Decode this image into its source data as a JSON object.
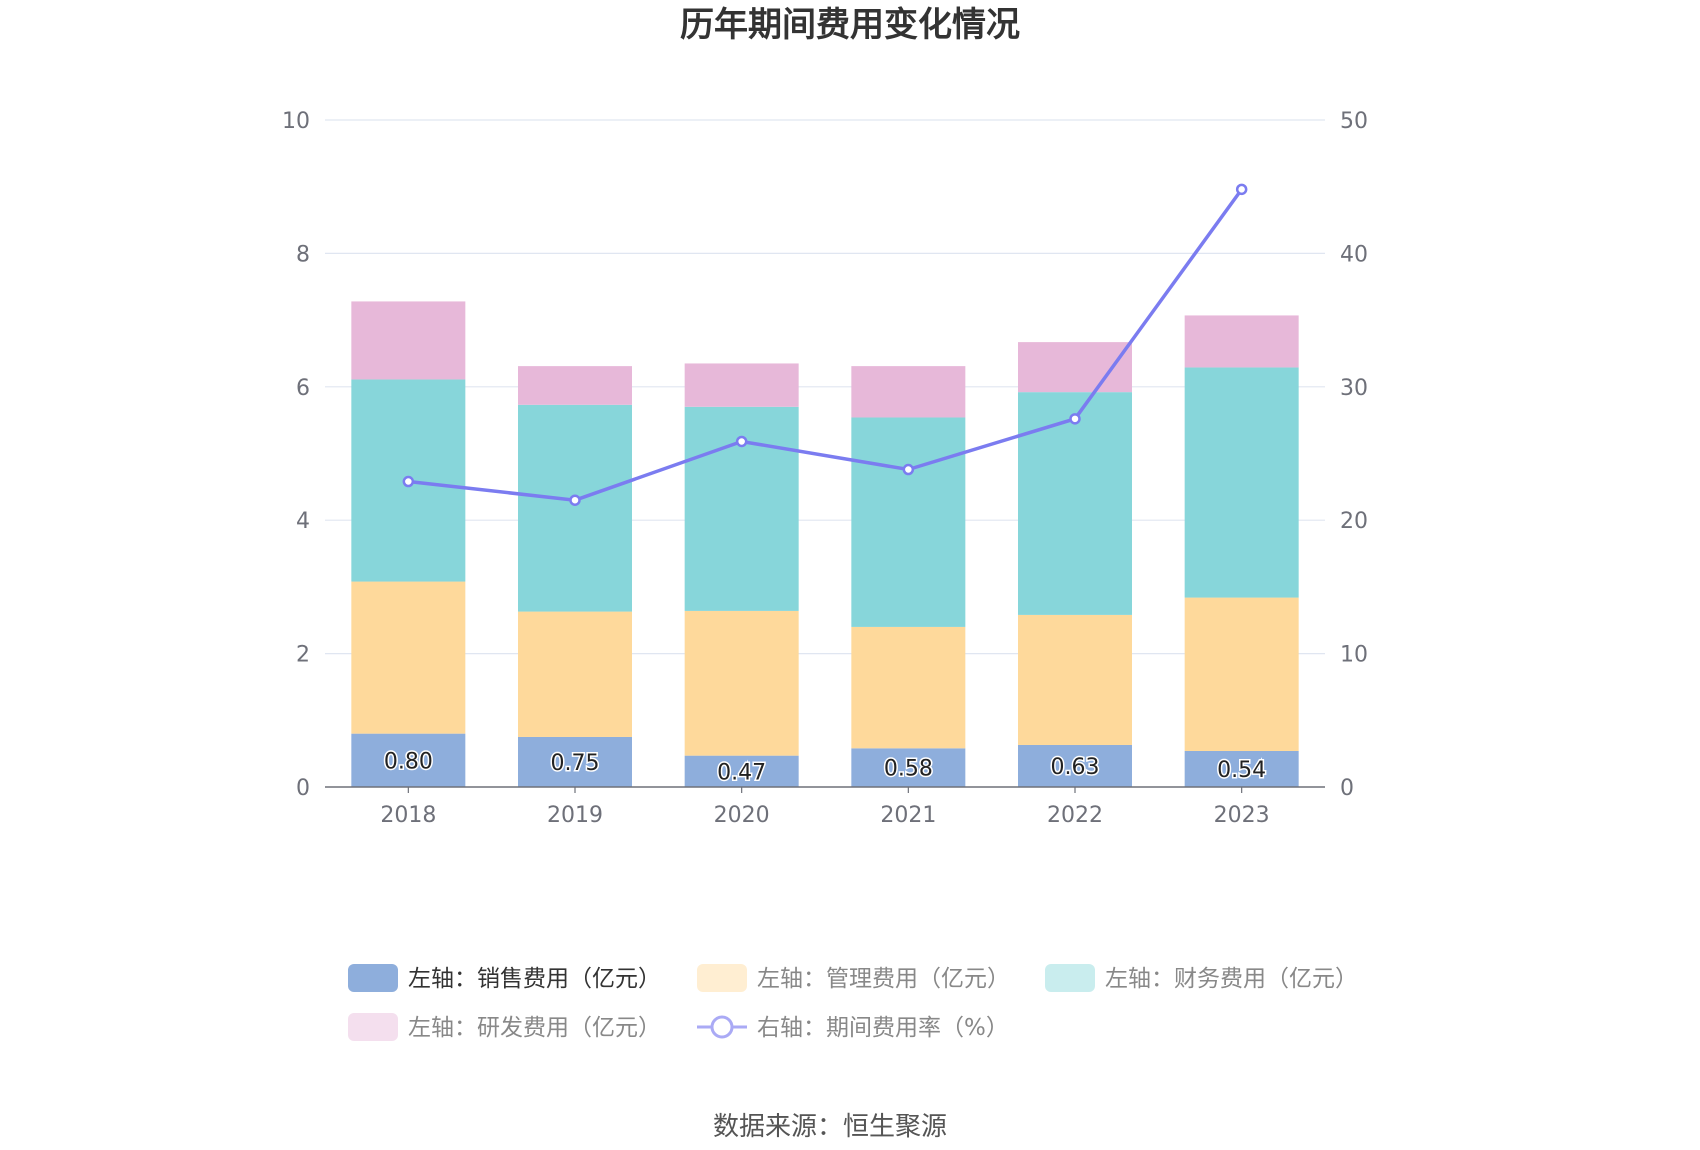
{
  "chart_data": {
    "type": "bar",
    "stacked": true,
    "title": "历年期间费用变化情况",
    "categories": [
      "2018",
      "2019",
      "2020",
      "2021",
      "2022",
      "2023"
    ],
    "y_left": {
      "min": 0,
      "max": 10,
      "ticks": [
        "0",
        "2",
        "4",
        "6",
        "8",
        "10"
      ]
    },
    "y_right": {
      "min": 0,
      "max": 50,
      "ticks": [
        "0",
        "10",
        "20",
        "30",
        "40",
        "50"
      ]
    },
    "series": [
      {
        "name": "左轴：销售费用（亿元）",
        "axis": "left",
        "color": "#8eaedc",
        "values": [
          0.8,
          0.75,
          0.47,
          0.58,
          0.63,
          0.54
        ],
        "labels": [
          "0.80",
          "0.75",
          "0.47",
          "0.58",
          "0.63",
          "0.54"
        ]
      },
      {
        "name": "左轴：管理费用（亿元）",
        "axis": "left",
        "color": "#fed99b",
        "values": [
          2.28,
          1.88,
          2.17,
          1.82,
          1.95,
          2.3
        ]
      },
      {
        "name": "左轴：财务费用（亿元）",
        "axis": "left",
        "color": "#87d6da",
        "values": [
          3.03,
          3.1,
          3.06,
          3.14,
          3.34,
          3.45
        ]
      },
      {
        "name": "左轴：研发费用（亿元）",
        "axis": "left",
        "color": "#e7b8d9",
        "values": [
          1.17,
          0.58,
          0.65,
          0.77,
          0.75,
          0.78
        ]
      },
      {
        "name": "右轴：期间费用率（%）",
        "axis": "right",
        "type": "line",
        "color": "#7b7cf0",
        "values": [
          22.9,
          21.5,
          25.9,
          23.8,
          27.6,
          44.8
        ]
      }
    ]
  },
  "source_text": "数据来源：恒生聚源"
}
